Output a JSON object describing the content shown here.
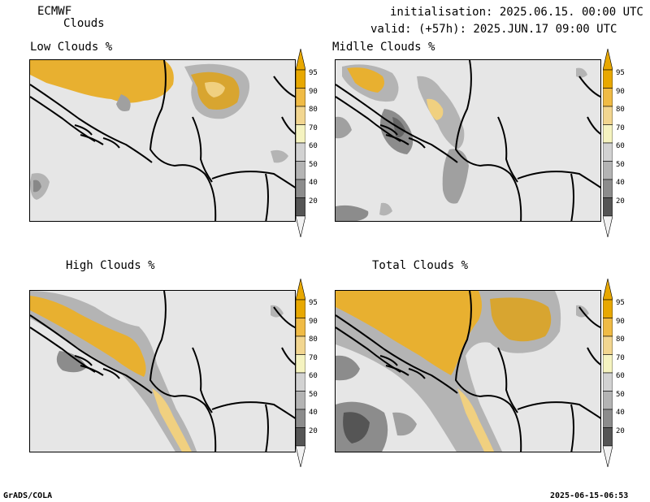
{
  "header": {
    "model": "ECMWF",
    "product": "Clouds",
    "init_line": "initialisation: 2025.06.15. 00:00 UTC",
    "valid_line": "valid: (+57h): 2025.JUN.17 09:00 UTC"
  },
  "footer": {
    "software": "GrADS/COLA",
    "timestamp": "2025-06-15-06:53"
  },
  "colorbar": {
    "levels": [
      "95",
      "90",
      "80",
      "70",
      "60",
      "50",
      "40",
      "20"
    ],
    "colors": [
      "#e8a800",
      "#f0bb45",
      "#f2d690",
      "#f5f3c0",
      "#d2d2d2",
      "#b4b4b4",
      "#8c8c8c",
      "#555555",
      "#f2f2f2"
    ]
  },
  "panels": [
    {
      "id": "low",
      "title": "Low Clouds %"
    },
    {
      "id": "middle",
      "title": "Midlle Clouds %"
    },
    {
      "id": "high",
      "title": "High Clouds %"
    },
    {
      "id": "total",
      "title": "Total Clouds %"
    }
  ]
}
